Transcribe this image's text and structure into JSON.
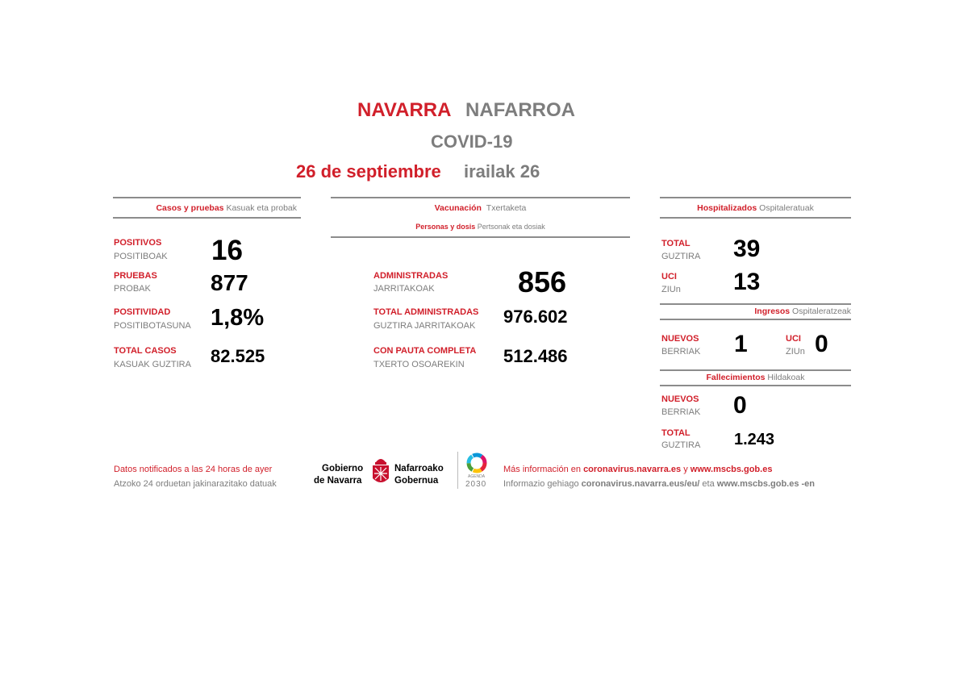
{
  "title": {
    "es": "NAVARRA",
    "eu": "NAFARROA"
  },
  "subtitle": "COVID-19",
  "date": {
    "es": "26 de septiembre",
    "eu": "irailak 26"
  },
  "cases": {
    "header_es": "Casos y pruebas",
    "header_eu": "Kasuak eta probak",
    "rows": [
      {
        "es": "POSITIVOS",
        "eu": "POSITIBOAK",
        "value": "16"
      },
      {
        "es": "PRUEBAS",
        "eu": "PROBAK",
        "value": "877"
      },
      {
        "es": "POSITIVIDAD",
        "eu": "POSITIBOTASUNA",
        "value": "1,8%"
      },
      {
        "es": "TOTAL CASOS",
        "eu": "KASUAK GUZTIRA",
        "value": "82.525"
      }
    ]
  },
  "vaccination": {
    "header_es": "Vacunación",
    "header_eu": "Txertaketa",
    "sub_es": "Personas y dosis",
    "sub_eu": "Pertsonak eta dosiak",
    "rows": [
      {
        "es": "ADMINISTRADAS",
        "eu": "JARRITAKOAK",
        "value": "856"
      },
      {
        "es": "TOTAL ADMINISTRADAS",
        "eu": "GUZTIRA JARRITAKOAK",
        "value": "976.602"
      },
      {
        "es": "CON PAUTA COMPLETA",
        "eu": "TXERTO OSOAREKIN",
        "value": "512.486"
      }
    ]
  },
  "hospital": {
    "header_es": "Hospitalizados",
    "header_eu": "Ospitaleratuak",
    "total": {
      "es": "TOTAL",
      "eu": "GUZTIRA",
      "value": "39"
    },
    "uci": {
      "es": "UCI",
      "eu": "ZIUn",
      "value": "13"
    },
    "admissions": {
      "header_es": "Ingresos",
      "header_eu": "Ospitaleratzeak",
      "new": {
        "es": "NUEVOS",
        "eu": "BERRIAK",
        "value": "1"
      },
      "uci": {
        "es": "UCI",
        "eu": "ZIUn",
        "value": "0"
      }
    },
    "deaths": {
      "header_es": "Fallecimientos",
      "header_eu": "Hildakoak",
      "new": {
        "es": "NUEVOS",
        "eu": "BERRIAK",
        "value": "0"
      },
      "total": {
        "es": "TOTAL",
        "eu": "GUZTIRA",
        "value": "1.243"
      }
    }
  },
  "footer": {
    "note_es": "Datos notificados a las 24 horas de ayer",
    "note_eu": "Atzoko 24 orduetan jakinarazitako datuak",
    "logo": {
      "line1_es": "Gobierno",
      "line2_es": "de Navarra",
      "line1_eu": "Nafarroako",
      "line2_eu": "Gobernua"
    },
    "agenda": {
      "label": "AGENDA",
      "year": "2030"
    },
    "info_es_prefix": "Más información en",
    "info_es_link1": "coronavirus.navarra.es",
    "info_es_and": "y",
    "info_es_link2": "www.mscbs.gob.es",
    "info_eu_prefix": "Informazio gehiago",
    "info_eu_link1": "coronavirus.navarra.eus/eu/",
    "info_eu_and": "eta",
    "info_eu_link2": "www.mscbs.gob.es -en"
  },
  "colors": {
    "red": "#d11f2a",
    "gray": "#7d7d7d"
  }
}
